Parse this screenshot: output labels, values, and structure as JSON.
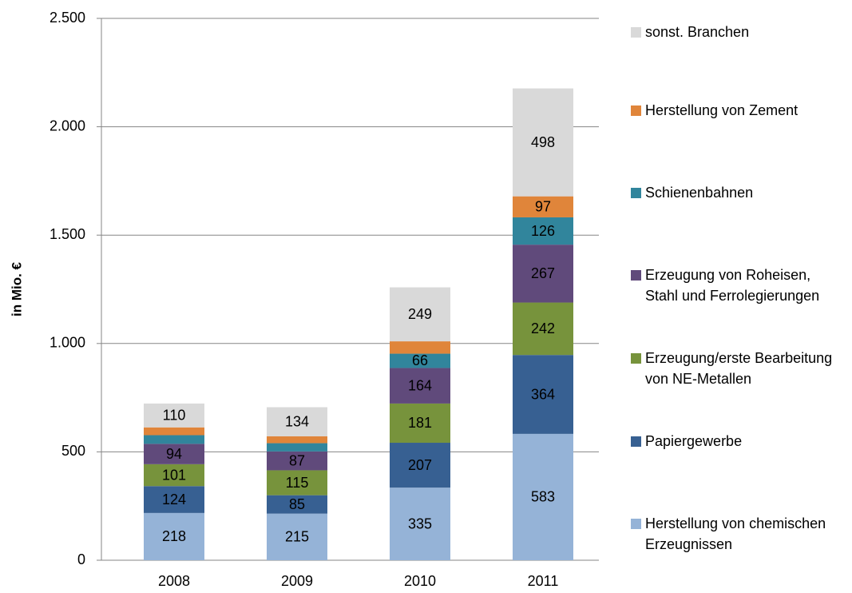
{
  "chart_data": {
    "type": "bar",
    "stacked": true,
    "y_label": "in Mio. €",
    "categories": [
      "2008",
      "2009",
      "2010",
      "2011"
    ],
    "series": [
      {
        "name": "Herstellung von chemischen Erzeugnissen",
        "color": "#95b3d7",
        "values": [
          218,
          215,
          335,
          583
        ]
      },
      {
        "name": "Papiergewerbe",
        "color": "#376092",
        "values": [
          124,
          85,
          207,
          364
        ]
      },
      {
        "name": "Erzeugung/erste Bearbeitung von NE-Metallen",
        "color": "#77933c",
        "values": [
          101,
          115,
          181,
          242
        ]
      },
      {
        "name": "Erzeugung von Roheisen, Stahl und Ferrolegierungen",
        "color": "#604a7b",
        "values": [
          94,
          87,
          164,
          267
        ]
      },
      {
        "name": "Schienenbahnen",
        "color": "#31859c",
        "values": [
          40,
          38,
          66,
          126
        ]
      },
      {
        "name": "Herstellung von Zement",
        "color": "#e0853a",
        "values": [
          36,
          32,
          57,
          97
        ]
      },
      {
        "name": "sonst. Branchen",
        "color": "#d9d9d9",
        "values": [
          110,
          134,
          249,
          498
        ]
      }
    ],
    "ylim": [
      0,
      2500
    ],
    "yticks": [
      0,
      {
        "value": 500,
        "label": "500"
      },
      {
        "value": 1000,
        "label": "1.000"
      },
      {
        "value": 1500,
        "label": "1.500"
      },
      {
        "value": 2000,
        "label": "2.000"
      },
      {
        "value": 2500,
        "label": "2.500"
      }
    ],
    "grid": true,
    "legend": "right"
  }
}
